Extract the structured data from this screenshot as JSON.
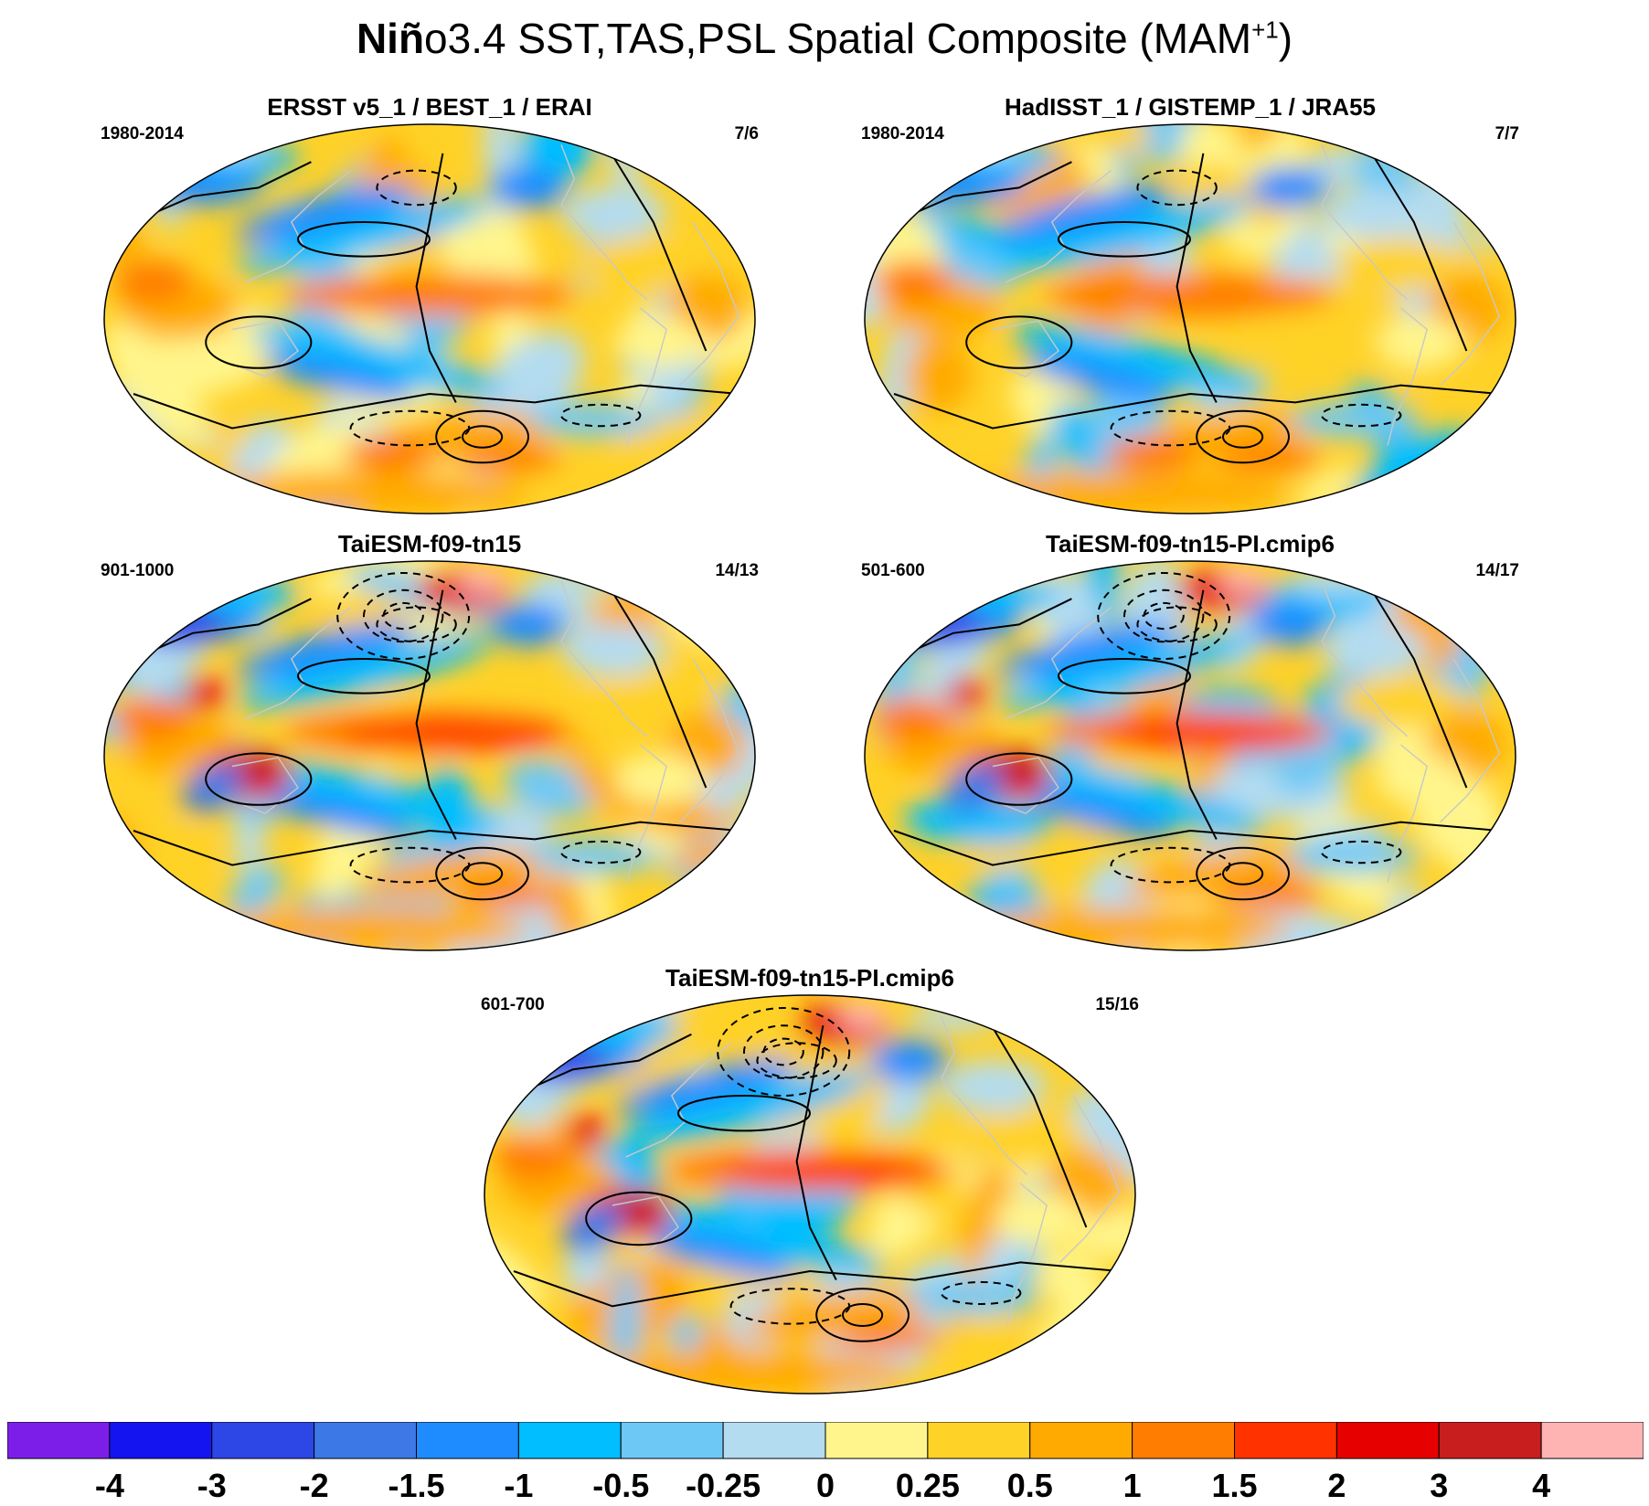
{
  "title": {
    "bold": "Niñ",
    "normal": "o3.4 SST,TAS,PSL Spatial Composite (MAM",
    "sup": "+1",
    "close": ")"
  },
  "panels": [
    {
      "title": "ERSST v5_1 / BEST_1 / ERAI",
      "left": "1980-2014",
      "right": "7/6"
    },
    {
      "title": "HadISST_1 / GISTEMP_1 / JRA55",
      "left": "1980-2014",
      "right": "7/7"
    },
    {
      "title": "TaiESM-f09-tn15",
      "left": "901-1000",
      "right": "14/13"
    },
    {
      "title": "TaiESM-f09-tn15-PI.cmip6",
      "left": "501-600",
      "right": "14/17"
    },
    {
      "title": "TaiESM-f09-tn15-PI.cmip6",
      "left": "601-700",
      "right": "15/16"
    }
  ],
  "colorbar": {
    "labels": [
      "-4",
      "-3",
      "-2",
      "-1.5",
      "-1",
      "-0.5",
      "-0.25",
      "0",
      "0.25",
      "0.5",
      "1",
      "1.5",
      "2",
      "3",
      "4"
    ],
    "colors": [
      "#7d1ee8",
      "#1414f0",
      "#2d46e6",
      "#3c78e6",
      "#1e8cff",
      "#00beff",
      "#6ec8f5",
      "#b4dcf0",
      "#fff58c",
      "#ffd228",
      "#ffaa00",
      "#ff7d00",
      "#ff3200",
      "#e60000",
      "#c81e1e",
      "#ffb4b4"
    ]
  },
  "contour_color": "#000000",
  "coast_color": "#c8c8c8"
}
